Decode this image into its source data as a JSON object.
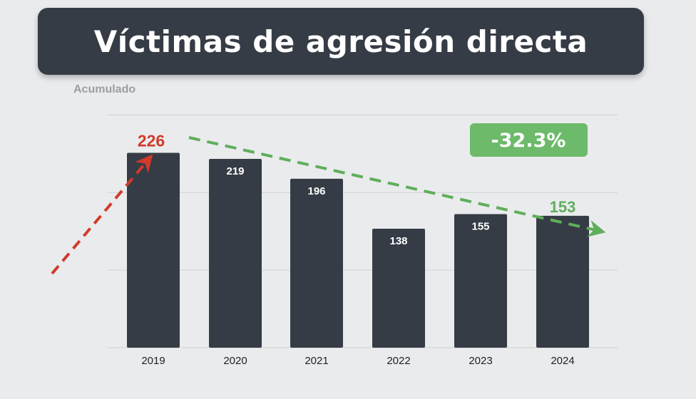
{
  "title": "Víctimas de agresión directa",
  "subtitle": "Acumulado",
  "badge": "-32.3%",
  "colors": {
    "banner": "#363c45",
    "bar": "#363c45",
    "highlight_max": "#d13a2c",
    "highlight_last": "#5fae5b",
    "badge_bg": "#6cba6a",
    "grid": "#cfd1d4",
    "background": "#eaebed"
  },
  "chart_data": {
    "type": "bar",
    "title": "Víctimas de agresión directa",
    "subtitle": "Acumulado",
    "categories": [
      "2019",
      "2020",
      "2021",
      "2022",
      "2023",
      "2024"
    ],
    "values": [
      226,
      219,
      196,
      138,
      155,
      153
    ],
    "ylim": [
      0,
      250
    ],
    "grid": true,
    "annotations": [
      "-32.3%"
    ],
    "highlighted_labels": {
      "max": "226",
      "last": "153"
    }
  }
}
